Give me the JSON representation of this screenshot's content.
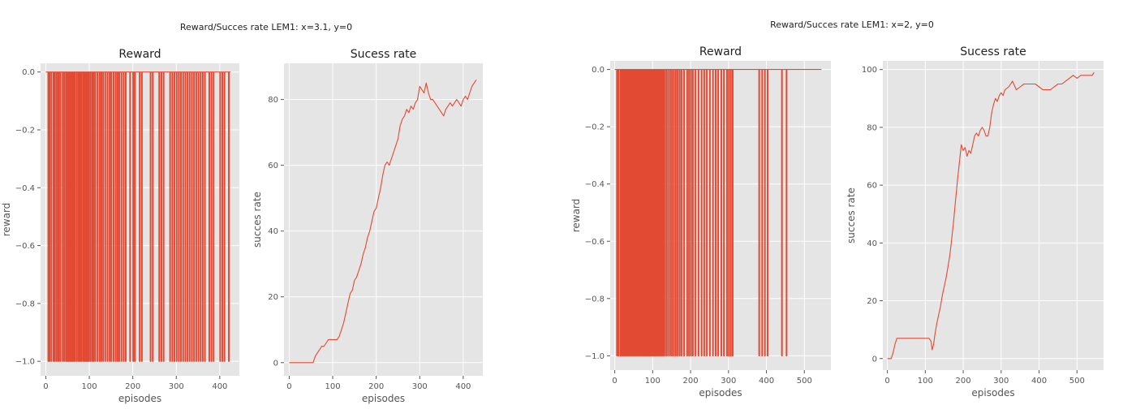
{
  "colors": {
    "series": "#e24a33",
    "plot_background": "#e5e5e5",
    "grid": "#ffffff"
  },
  "figures": [
    {
      "suptitle": "Reward/Succes rate LEM1: x=3.1, y=0"
    },
    {
      "suptitle": "Reward/Succes rate LEM1: x=2, y=0"
    }
  ],
  "chart_data": [
    {
      "type": "line",
      "title": "Reward",
      "xlabel": "episodes",
      "ylabel": "reward",
      "xlim": [
        -12,
        445
      ],
      "ylim": [
        -1.05,
        0.03
      ],
      "xticks": [
        0,
        100,
        200,
        300,
        400
      ],
      "yticks": [
        0.0,
        -0.2,
        -0.4,
        -0.6,
        -0.8,
        -1.0
      ],
      "ytick_labels": [
        "0.0",
        "−0.2",
        "−0.4",
        "−0.6",
        "−0.8",
        "−1.0"
      ],
      "grid": true,
      "series": [
        {
          "pattern": "binary_spikes",
          "baseline": 0.0,
          "spike_value": -1.0,
          "last_x": 425,
          "spike_x": [
            5,
            8,
            12,
            17,
            19,
            23,
            27,
            29,
            33,
            38,
            42,
            46,
            49,
            52,
            55,
            58,
            60,
            63,
            66,
            70,
            74,
            77,
            80,
            82,
            86,
            89,
            92,
            95,
            98,
            102,
            106,
            109,
            113,
            118,
            123,
            127,
            131,
            136,
            141,
            146,
            150,
            155,
            160,
            164,
            168,
            173,
            178,
            183,
            193,
            200,
            204,
            215,
            220,
            240,
            245,
            260,
            265,
            270,
            285,
            290,
            295,
            300,
            305,
            310,
            315,
            320,
            325,
            330,
            335,
            340,
            345,
            350,
            355,
            360,
            365,
            375,
            380,
            385,
            400,
            405,
            410,
            420
          ]
        }
      ]
    },
    {
      "type": "line",
      "title": "Sucess rate",
      "xlabel": "episodes",
      "ylabel": "succes rate",
      "xlim": [
        -12,
        445
      ],
      "ylim": [
        -4,
        91
      ],
      "xticks": [
        0,
        100,
        200,
        300,
        400
      ],
      "yticks": [
        0,
        20,
        40,
        60,
        80
      ],
      "grid": true,
      "series": [
        {
          "x": [
            0,
            20,
            40,
            55,
            60,
            65,
            70,
            75,
            80,
            85,
            90,
            100,
            110,
            115,
            120,
            125,
            130,
            135,
            140,
            145,
            150,
            155,
            160,
            165,
            170,
            175,
            180,
            185,
            190,
            195,
            200,
            205,
            210,
            215,
            220,
            225,
            230,
            235,
            240,
            245,
            250,
            255,
            260,
            265,
            270,
            275,
            280,
            285,
            290,
            295,
            300,
            305,
            310,
            315,
            320,
            325,
            330,
            335,
            340,
            345,
            350,
            355,
            360,
            365,
            370,
            375,
            380,
            385,
            390,
            395,
            400,
            405,
            410,
            415,
            420,
            425,
            430
          ],
          "y": [
            0,
            0,
            0,
            0,
            2,
            3,
            4,
            5,
            5,
            6,
            7,
            7,
            7,
            8,
            10,
            12,
            15,
            18,
            21,
            22,
            25,
            26,
            28,
            30,
            33,
            35,
            38,
            40,
            43,
            46,
            47,
            50,
            53,
            57,
            60,
            61,
            60,
            62,
            64,
            66,
            68,
            72,
            74,
            75,
            77,
            76,
            78,
            77,
            79,
            80,
            84,
            83,
            82,
            85,
            82,
            80,
            80,
            79,
            78,
            77,
            76,
            75,
            77,
            78,
            79,
            78,
            79,
            80,
            79,
            78,
            80,
            81,
            80,
            82,
            84,
            85,
            86
          ]
        }
      ]
    },
    {
      "type": "line",
      "title": "Reward",
      "xlabel": "episodes",
      "ylabel": "reward",
      "xlim": [
        -12,
        570
      ],
      "ylim": [
        -1.05,
        0.03
      ],
      "xticks": [
        0,
        100,
        200,
        300,
        400,
        500
      ],
      "yticks": [
        0.0,
        -0.2,
        -0.4,
        -0.6,
        -0.8,
        -1.0
      ],
      "ytick_labels": [
        "0.0",
        "−0.2",
        "−0.4",
        "−0.6",
        "−0.8",
        "−1.0"
      ],
      "grid": true,
      "series": [
        {
          "pattern": "binary_spikes",
          "baseline": 0.0,
          "spike_value": -1.0,
          "last_x": 545,
          "spike_x": [
            5,
            9,
            14,
            18,
            22,
            26,
            30,
            34,
            38,
            42,
            46,
            50,
            54,
            58,
            62,
            66,
            70,
            74,
            78,
            82,
            86,
            90,
            94,
            98,
            102,
            106,
            110,
            114,
            118,
            122,
            126,
            130,
            135,
            140,
            145,
            150,
            155,
            160,
            165,
            170,
            175,
            182,
            190,
            195,
            200,
            205,
            212,
            220,
            228,
            235,
            242,
            250,
            258,
            265,
            272,
            280,
            287,
            295,
            300,
            305,
            310,
            380,
            388,
            395,
            402,
            440,
            452
          ]
        }
      ]
    },
    {
      "type": "line",
      "title": "Sucess rate",
      "xlabel": "episodes",
      "ylabel": "succes rate",
      "xlim": [
        -12,
        570
      ],
      "ylim": [
        -4,
        103
      ],
      "xticks": [
        0,
        100,
        200,
        300,
        400,
        500
      ],
      "yticks": [
        0,
        20,
        40,
        60,
        80,
        100
      ],
      "grid": true,
      "series": [
        {
          "x": [
            0,
            10,
            15,
            20,
            25,
            30,
            40,
            60,
            80,
            100,
            110,
            115,
            118,
            122,
            125,
            130,
            135,
            140,
            145,
            150,
            155,
            160,
            165,
            170,
            175,
            180,
            185,
            190,
            195,
            200,
            205,
            210,
            215,
            220,
            225,
            230,
            235,
            240,
            245,
            250,
            255,
            260,
            265,
            270,
            275,
            280,
            285,
            290,
            295,
            300,
            305,
            310,
            320,
            330,
            340,
            350,
            360,
            370,
            380,
            390,
            400,
            410,
            420,
            430,
            440,
            450,
            460,
            470,
            480,
            490,
            500,
            510,
            520,
            530,
            540,
            545
          ],
          "y": [
            0,
            0,
            2,
            5,
            7,
            7,
            7,
            7,
            7,
            7,
            7,
            6,
            3,
            5,
            8,
            12,
            15,
            18,
            22,
            25,
            28,
            32,
            36,
            42,
            48,
            55,
            62,
            68,
            74,
            72,
            73,
            70,
            72,
            71,
            74,
            77,
            78,
            77,
            79,
            80,
            79,
            77,
            77,
            80,
            85,
            88,
            90,
            89,
            91,
            92,
            91,
            93,
            94,
            96,
            93,
            94,
            95,
            95,
            95,
            95,
            94,
            93,
            93,
            93,
            94,
            95,
            95,
            96,
            97,
            98,
            97,
            98,
            98,
            98,
            98,
            99
          ]
        }
      ]
    }
  ]
}
